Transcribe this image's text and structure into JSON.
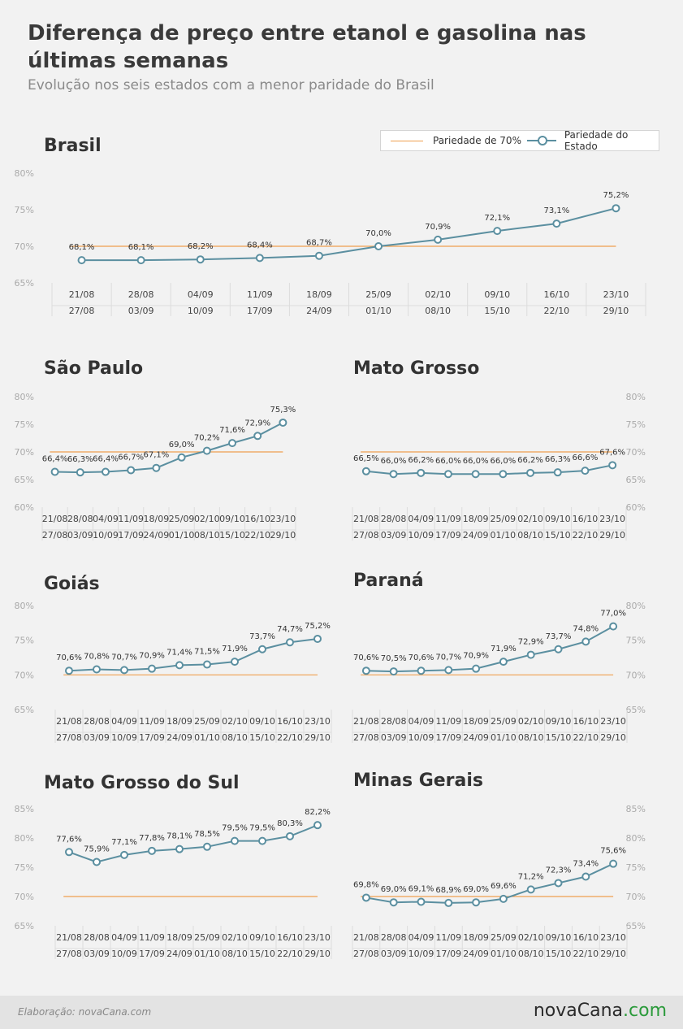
{
  "header": {
    "title": "Diferença de preço entre etanol e gasolina nas últimas semanas",
    "subtitle": "Evolução nos seis estados com a menor paridade do Brasil"
  },
  "legend": {
    "item1": "Pariedade de 70%",
    "item2": "Pariedade do Estado"
  },
  "colors": {
    "series": "#5b8fa0",
    "threshold": "#f0a050",
    "text": "#404040",
    "tick": "#aaaaaa"
  },
  "footer": {
    "credit": "Elaboração: novaCana.com",
    "logo_main": "novaCana",
    "logo_suffix": ".com"
  },
  "chart_data": [
    {
      "type": "line",
      "title": "Brasil",
      "categories": [
        "21/08 27/08",
        "28/08 03/09",
        "04/09 10/09",
        "11/09 17/09",
        "18/09 24/09",
        "25/09 01/10",
        "02/10 08/10",
        "09/10 15/10",
        "16/10 22/10",
        "23/10 29/10"
      ],
      "cat_top": [
        "21/08",
        "28/08",
        "04/09",
        "11/09",
        "18/09",
        "25/09",
        "02/10",
        "09/10",
        "16/10",
        "23/10"
      ],
      "cat_bottom": [
        "27/08",
        "03/09",
        "10/09",
        "17/09",
        "24/09",
        "01/10",
        "08/10",
        "15/10",
        "22/10",
        "29/10"
      ],
      "values": [
        68.1,
        68.1,
        68.2,
        68.4,
        68.7,
        70.0,
        70.9,
        72.1,
        73.1,
        75.2
      ],
      "labels": [
        "68,1%",
        "68,1%",
        "68,2%",
        "68,4%",
        "68,7%",
        "70,0%",
        "70,9%",
        "72,1%",
        "73,1%",
        "75,2%"
      ],
      "threshold": 70,
      "ylim": [
        65,
        80
      ],
      "yticks": [
        "65%",
        "70%",
        "75%",
        "80%"
      ],
      "yaxis_side": "left"
    },
    {
      "type": "line",
      "title": "São Paulo",
      "cat_top": [
        "21/08",
        "28/08",
        "04/09",
        "11/09",
        "18/09",
        "25/09",
        "02/10",
        "09/10",
        "16/10",
        "23/10"
      ],
      "cat_bottom": [
        "27/08",
        "03/09",
        "10/09",
        "17/09",
        "24/09",
        "01/10",
        "08/10",
        "15/10",
        "22/10",
        "29/10"
      ],
      "values": [
        66.4,
        66.3,
        66.4,
        66.7,
        67.1,
        69.0,
        70.2,
        71.6,
        72.9,
        75.3
      ],
      "labels": [
        "66,4%",
        "66,3%",
        "66,4%",
        "66,7%",
        "67,1%",
        "69,0%",
        "70,2%",
        "71,6%",
        "72,9%",
        "75,3%"
      ],
      "threshold": 70,
      "ylim": [
        60,
        80
      ],
      "yticks": [
        "60%",
        "65%",
        "70%",
        "75%",
        "80%"
      ],
      "yaxis_side": "left"
    },
    {
      "type": "line",
      "title": "Mato Grosso",
      "cat_top": [
        "21/08",
        "28/08",
        "04/09",
        "11/09",
        "18/09",
        "25/09",
        "02/10",
        "09/10",
        "16/10",
        "23/10"
      ],
      "cat_bottom": [
        "27/08",
        "03/09",
        "10/09",
        "17/09",
        "24/09",
        "01/10",
        "08/10",
        "15/10",
        "22/10",
        "29/10"
      ],
      "values": [
        66.5,
        66.0,
        66.2,
        66.0,
        66.0,
        66.0,
        66.2,
        66.3,
        66.6,
        67.6
      ],
      "labels": [
        "66,5%",
        "66,0%",
        "66,2%",
        "66,0%",
        "66,0%",
        "66,0%",
        "66,2%",
        "66,3%",
        "66,6%",
        "67,6%"
      ],
      "threshold": 70,
      "ylim": [
        60,
        80
      ],
      "yticks": [
        "60%",
        "65%",
        "70%",
        "75%",
        "80%"
      ],
      "yaxis_side": "right"
    },
    {
      "type": "line",
      "title": "Goiás",
      "cat_top": [
        "21/08",
        "28/08",
        "04/09",
        "11/09",
        "18/09",
        "25/09",
        "02/10",
        "09/10",
        "16/10",
        "23/10"
      ],
      "cat_bottom": [
        "27/08",
        "03/09",
        "10/09",
        "17/09",
        "24/09",
        "01/10",
        "08/10",
        "15/10",
        "22/10",
        "29/10"
      ],
      "values": [
        70.6,
        70.8,
        70.7,
        70.9,
        71.4,
        71.5,
        71.9,
        73.7,
        74.7,
        75.2
      ],
      "labels": [
        "70,6%",
        "70,8%",
        "70,7%",
        "70,9%",
        "71,4%",
        "71,5%",
        "71,9%",
        "73,7%",
        "74,7%",
        "75,2%"
      ],
      "threshold": 70,
      "ylim": [
        65,
        80
      ],
      "yticks": [
        "65%",
        "70%",
        "75%",
        "80%"
      ],
      "yaxis_side": "left"
    },
    {
      "type": "line",
      "title": "Paraná",
      "cat_top": [
        "21/08",
        "28/08",
        "04/09",
        "11/09",
        "18/09",
        "25/09",
        "02/10",
        "09/10",
        "16/10",
        "23/10"
      ],
      "cat_bottom": [
        "27/08",
        "03/09",
        "10/09",
        "17/09",
        "24/09",
        "01/10",
        "08/10",
        "15/10",
        "22/10",
        "29/10"
      ],
      "values": [
        70.6,
        70.5,
        70.6,
        70.7,
        70.9,
        71.9,
        72.9,
        73.7,
        74.8,
        77.0
      ],
      "labels": [
        "70,6%",
        "70,5%",
        "70,6%",
        "70,7%",
        "70,9%",
        "71,9%",
        "72,9%",
        "73,7%",
        "74,8%",
        "77,0%"
      ],
      "threshold": 70,
      "ylim": [
        65,
        80
      ],
      "yticks": [
        "65%",
        "70%",
        "75%",
        "80%"
      ],
      "yaxis_side": "right"
    },
    {
      "type": "line",
      "title": "Mato Grosso do Sul",
      "cat_top": [
        "21/08",
        "28/08",
        "04/09",
        "11/09",
        "18/09",
        "25/09",
        "02/10",
        "09/10",
        "16/10",
        "23/10"
      ],
      "cat_bottom": [
        "27/08",
        "03/09",
        "10/09",
        "17/09",
        "24/09",
        "01/10",
        "08/10",
        "15/10",
        "22/10",
        "29/10"
      ],
      "values": [
        77.6,
        75.9,
        77.1,
        77.8,
        78.1,
        78.5,
        79.5,
        79.5,
        80.3,
        82.2
      ],
      "labels": [
        "77,6%",
        "75,9%",
        "77,1%",
        "77,8%",
        "78,1%",
        "78,5%",
        "79,5%",
        "79,5%",
        "80,3%",
        "82,2%"
      ],
      "threshold": 70,
      "ylim": [
        65,
        85
      ],
      "yticks": [
        "65%",
        "70%",
        "75%",
        "80%",
        "85%"
      ],
      "yaxis_side": "left"
    },
    {
      "type": "line",
      "title": "Minas Gerais",
      "cat_top": [
        "21/08",
        "28/08",
        "04/09",
        "11/09",
        "18/09",
        "25/09",
        "02/10",
        "09/10",
        "16/10",
        "23/10"
      ],
      "cat_bottom": [
        "27/08",
        "03/09",
        "10/09",
        "17/09",
        "24/09",
        "01/10",
        "08/10",
        "15/10",
        "22/10",
        "29/10"
      ],
      "values": [
        69.8,
        69.0,
        69.1,
        68.9,
        69.0,
        69.6,
        71.2,
        72.3,
        73.4,
        75.6
      ],
      "labels": [
        "69,8%",
        "69,0%",
        "69,1%",
        "68,9%",
        "69,0%",
        "69,6%",
        "71,2%",
        "72,3%",
        "73,4%",
        "75,6%"
      ],
      "threshold": 70,
      "ylim": [
        65,
        85
      ],
      "yticks": [
        "65%",
        "70%",
        "75%",
        "80%",
        "85%"
      ],
      "yaxis_side": "right"
    }
  ]
}
